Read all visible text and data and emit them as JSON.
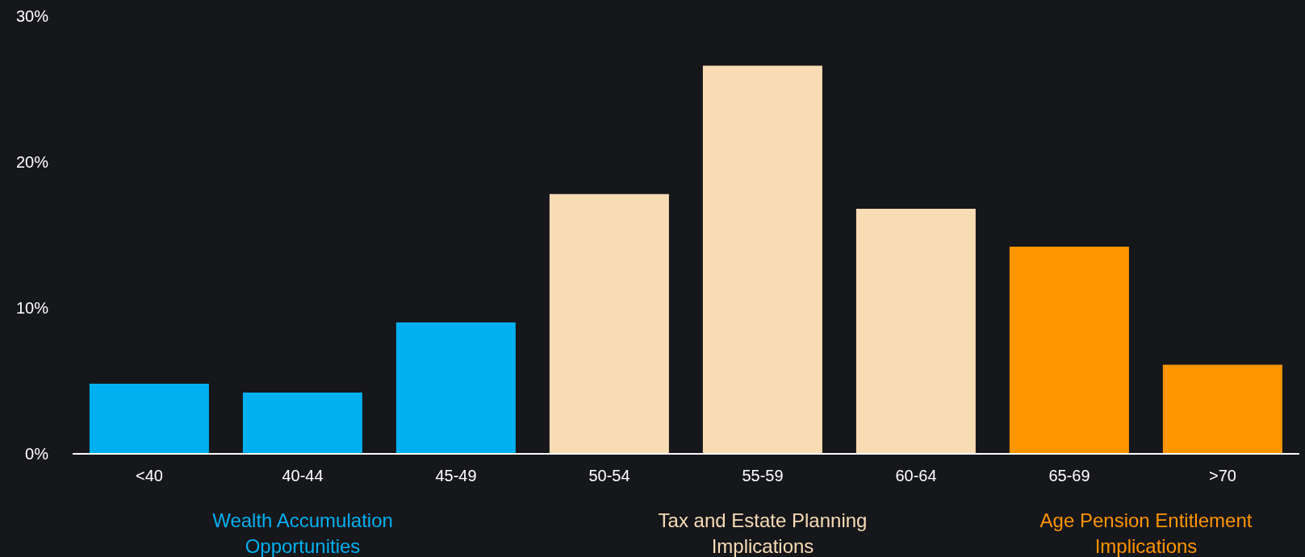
{
  "chart_data": {
    "type": "bar",
    "categories": [
      "<40",
      "40-44",
      "45-49",
      "50-54",
      "55-59",
      "60-64",
      "65-69",
      ">70"
    ],
    "series": [
      {
        "name": "Wealth Accumulation Opportunities",
        "color": "#00b0f0",
        "values": [
          4.8,
          4.2,
          9.0,
          null,
          null,
          null,
          null,
          null
        ]
      },
      {
        "name": "Tax and Estate Planning Implications",
        "color": "#f8dcb4",
        "values": [
          null,
          null,
          null,
          17.8,
          26.6,
          16.8,
          null,
          null
        ]
      },
      {
        "name": "Age Pension Entitlement Implications",
        "color": "#ff9500",
        "values": [
          null,
          null,
          null,
          null,
          null,
          null,
          14.2,
          6.1
        ]
      }
    ],
    "stacked": true,
    "ylim": [
      0,
      30
    ],
    "yticks": [
      {
        "value": 0,
        "label": "0%"
      },
      {
        "value": 10,
        "label": "10%"
      },
      {
        "value": 20,
        "label": "20%"
      },
      {
        "value": 30,
        "label": "30%"
      }
    ],
    "grid": false,
    "legend": "bottom"
  }
}
